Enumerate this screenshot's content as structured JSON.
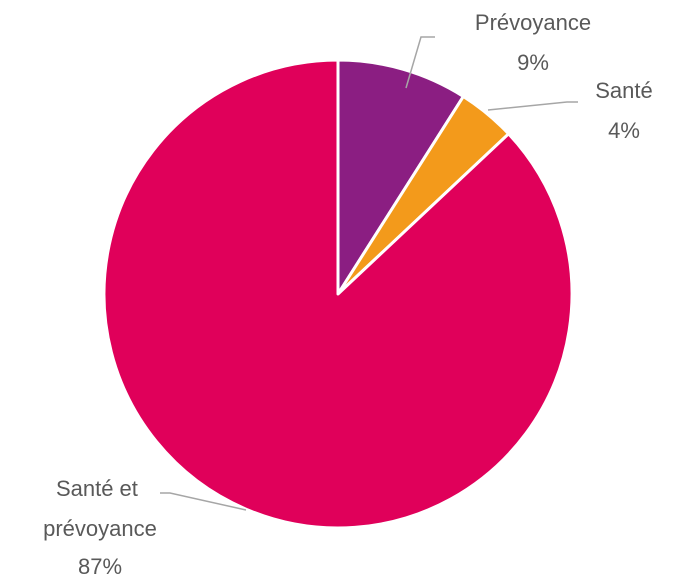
{
  "chart_data": {
    "type": "pie",
    "title": "",
    "start_angle_deg": 0,
    "direction": "clockwise",
    "legend": "none",
    "slices": [
      {
        "label": "Prévoyance",
        "value": 9,
        "value_label": "9%",
        "color": "#8B1E82"
      },
      {
        "label": "Santé",
        "value": 4,
        "value_label": "4%",
        "color": "#F39A1B"
      },
      {
        "label": "Santé et prévoyance",
        "value": 87,
        "value_label": "87%",
        "color": "#E0005A"
      }
    ]
  }
}
